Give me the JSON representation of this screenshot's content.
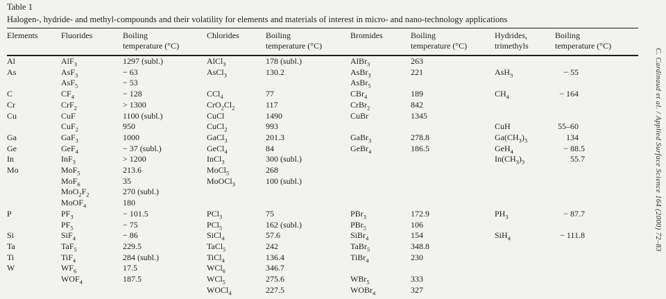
{
  "page": {
    "table_label": "Table 1",
    "caption": "Halogen-, hydride- and methyl-compounds and their volatility for elements and materials of interest in micro- and nano-technology applications",
    "citation": "C. Cardinaud et al. / Applied Surface Science 164 (2000) 72–83"
  },
  "table": {
    "columns": [
      "Elements",
      "Fluorides",
      "Boiling\ntemperature (°C)",
      "Chlorides",
      "Boiling\ntemperature (°C)",
      "Bromides",
      "Boiling\ntemperature (°C)",
      "Hydrides,\ntrimethyls",
      "Boiling\ntemperature (°C)"
    ],
    "rows": [
      [
        "Al",
        "AlF_3",
        "1297 (subl.)",
        "AlCl_3",
        "178 (subl.)",
        "AlBr_3",
        "263",
        "",
        ""
      ],
      [
        "As",
        "AsF_3",
        "− 63",
        "AsCl_3",
        "130.2",
        "AsBr_3",
        "221",
        "AsH_3",
        "− 55"
      ],
      [
        "",
        "AsF_5",
        "− 53",
        "",
        "",
        "AsBr_5",
        "",
        "",
        ""
      ],
      [
        "C",
        "CF_4",
        "− 128",
        "CCl_4",
        "77",
        "CBr_4",
        "189",
        "CH_4",
        "− 164"
      ],
      [
        "Cr",
        "CrF_2",
        "> 1300",
        "CrO_2Cl_2",
        "117",
        "CrBr_2",
        "842",
        "",
        ""
      ],
      [
        "Cu",
        "CuF",
        "1100 (subl.)",
        "CuCl",
        "1490",
        "CuBr",
        "1345",
        "",
        ""
      ],
      [
        "",
        "CuF_2",
        "950",
        "CuCl_2",
        "993",
        "",
        "",
        "CuH",
        "55–60"
      ],
      [
        "Ga",
        "GaF_3",
        "1000",
        "GaCl_3",
        "201.3",
        "GaBr_3",
        "278.8",
        "Ga(CH_3)_3",
        "134"
      ],
      [
        "Ge",
        "GeF_4",
        "− 37 (subl.)",
        "GeCl_4",
        "84",
        "GeBr_4",
        "186.5",
        "GeH_4",
        "− 88.5"
      ],
      [
        "In",
        "InF_3",
        "> 1200",
        "InCl_3",
        "300 (subl.)",
        "",
        "",
        "In(CH_3)_3",
        "55.7"
      ],
      [
        "Mo",
        "MoF_5",
        "213.6",
        "MoCl_5",
        "268",
        "",
        "",
        "",
        ""
      ],
      [
        "",
        "MoF_6",
        "35",
        "MoOCl_3",
        "100 (subl.)",
        "",
        "",
        "",
        ""
      ],
      [
        "",
        "MoO_2F_2",
        "270 (subl.)",
        "",
        "",
        "",
        "",
        "",
        ""
      ],
      [
        "",
        "MoOF_4",
        "180",
        "",
        "",
        "",
        "",
        "",
        ""
      ],
      [
        "P",
        "PF_3",
        "− 101.5",
        "PCl_3",
        "75",
        "PBr_3",
        "172.9",
        "PH_3",
        "− 87.7"
      ],
      [
        "",
        "PF_5",
        "− 75",
        "PCl_5",
        "162 (subl.)",
        "PBr_5",
        "106",
        "",
        ""
      ],
      [
        "Si",
        "SiF_4",
        "− 86",
        "SiCl_4",
        "57.6",
        "SiBr_4",
        "154",
        "SiH_4",
        "− 111.8"
      ],
      [
        "Ta",
        "TaF_5",
        "229.5",
        "TaCl_5",
        "242",
        "TaBr_5",
        "348.8",
        "",
        ""
      ],
      [
        "Ti",
        "TiF_4",
        "284 (subl.)",
        "TiCl_4",
        "136.4",
        "TiBr_4",
        "230",
        "",
        ""
      ],
      [
        "W",
        "WF_6",
        "17.5",
        "WCl_6",
        "346.7",
        "",
        "",
        "",
        ""
      ],
      [
        "",
        "WOF_4",
        "187.5",
        "WCl_5",
        "275.6",
        "WBr_5",
        "333",
        "",
        ""
      ],
      [
        "",
        "",
        "",
        "WOCl_4",
        "227.5",
        "WOBr_4",
        "327",
        "",
        ""
      ]
    ]
  }
}
